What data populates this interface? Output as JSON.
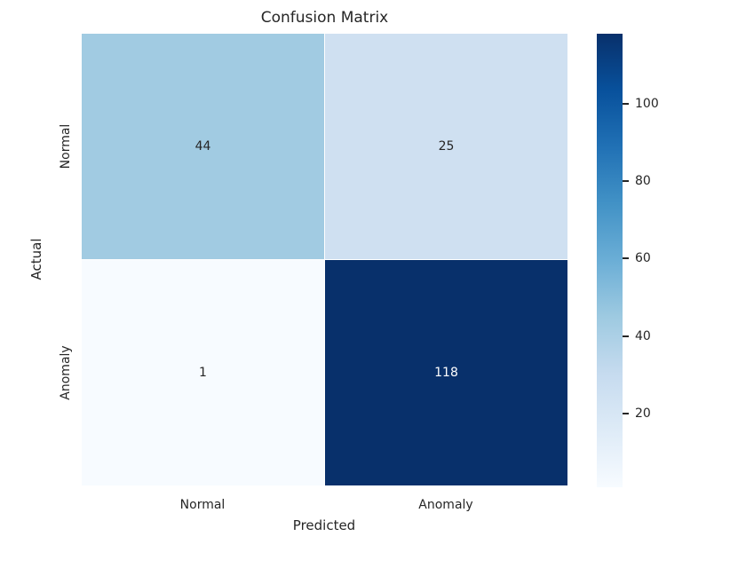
{
  "chart_data": {
    "type": "heatmap",
    "title": "Confusion Matrix",
    "xlabel": "Predicted",
    "ylabel": "Actual",
    "x_tick_labels": [
      "Normal",
      "Anomaly"
    ],
    "y_tick_labels": [
      "Normal",
      "Anomaly"
    ],
    "matrix": [
      [
        44,
        25
      ],
      [
        1,
        118
      ]
    ],
    "vmin": 1,
    "vmax": 118,
    "colormap": "Blues",
    "grid": false,
    "legend_position": "right-colorbar",
    "colorbar_ticks": [
      "20",
      "40",
      "60",
      "80",
      "100"
    ],
    "cell_colors": [
      [
        "#a1cbe2",
        "#cfe0f1"
      ],
      [
        "#f7fbff",
        "#08306b"
      ]
    ],
    "cell_text_colors": [
      [
        "#262626",
        "#262626"
      ],
      [
        "#262626",
        "#ffffff"
      ]
    ],
    "colormap_stops": [
      "#f7fbff",
      "#deebf7",
      "#c6dbef",
      "#9ecae1",
      "#6baed6",
      "#4292c6",
      "#2171b5",
      "#08519c",
      "#08306b"
    ],
    "text_color": "#262626",
    "background_color": "#ffffff"
  }
}
